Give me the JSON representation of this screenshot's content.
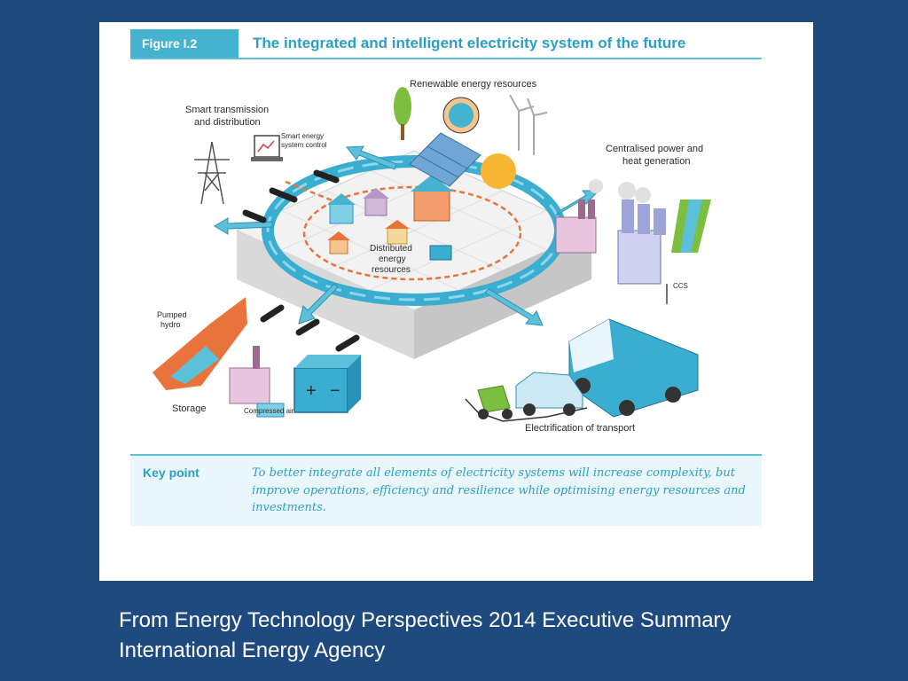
{
  "figure": {
    "tag": "Figure I.2",
    "title": "The integrated and intelligent electricity system of the future"
  },
  "diagram_labels": {
    "renewable": "Renewable energy resources",
    "smart_transmission_line1": "Smart transmission",
    "smart_transmission_line2": "and distribution",
    "smart_control_line1": "Smart energy",
    "smart_control_line2": "system control",
    "centralised_line1": "Centralised power and",
    "centralised_line2": "heat generation",
    "distributed_line1": "Distributed",
    "distributed_line2": "energy",
    "distributed_line3": "resources",
    "ccs": "CCS",
    "pumped_line1": "Pumped",
    "pumped_line2": "hydro",
    "storage": "Storage",
    "compressed_air": "Compressed air",
    "transport": "Electrification of transport"
  },
  "key_point": {
    "label": "Key point",
    "text": "To better integrate all elements of electricity systems will increase complexity, but improve operations, efficiency and resilience while optimising energy resources and investments."
  },
  "caption": {
    "line1": "From Energy Technology Perspectives 2014 Executive Summary",
    "line2": "International Energy Agency"
  },
  "colors": {
    "background": "#1f4a7f",
    "accent": "#45b3d0",
    "ring": "#3aaed0",
    "orange": "#e8743b"
  }
}
